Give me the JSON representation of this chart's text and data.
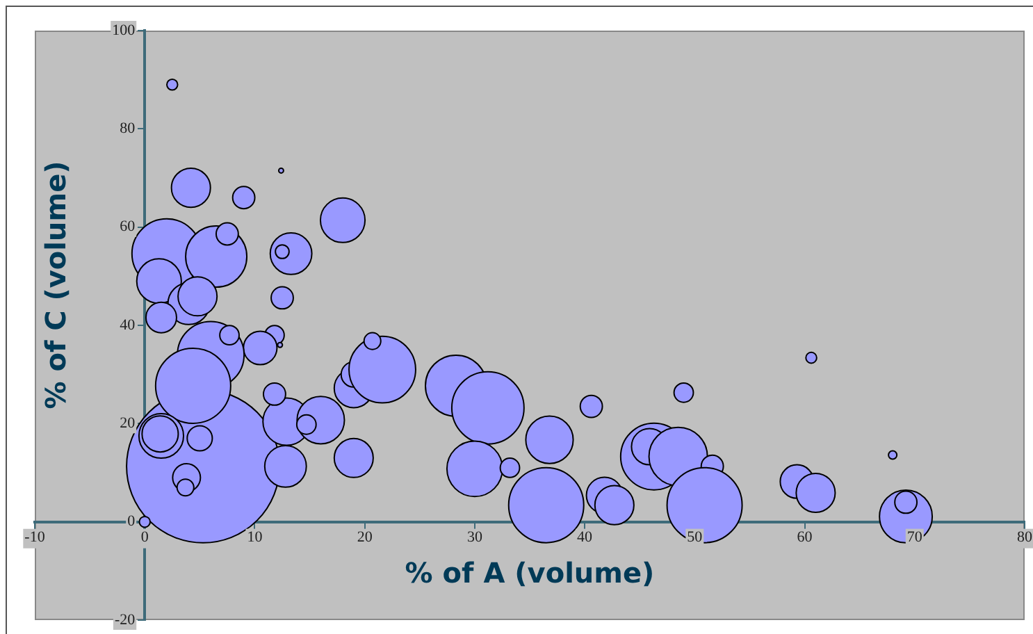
{
  "chart_data": {
    "type": "bubble",
    "xlabel": "% of A (volume)",
    "ylabel": "% of C (volume)",
    "xlim": [
      -10,
      80
    ],
    "ylim": [
      -20,
      100
    ],
    "xticks": [
      -10,
      0,
      10,
      20,
      30,
      40,
      50,
      60,
      70,
      80
    ],
    "yticks": [
      -20,
      0,
      20,
      40,
      60,
      80,
      100
    ],
    "color": "#9999ff",
    "x": [
      5.3,
      0,
      2.5,
      4.2,
      9,
      12.4,
      18,
      2,
      6.5,
      13.3,
      12.5,
      1.3,
      4,
      4.8,
      12.5,
      1.5,
      11.8,
      10.5,
      12.3,
      6,
      4.4,
      12.9,
      12.8,
      1.5,
      1.4,
      5,
      3.8,
      3.7,
      11.8,
      16,
      19,
      19,
      19,
      21.6,
      20.7,
      28.3,
      31.2,
      30,
      33.2,
      36.8,
      36.5,
      40.6,
      41.8,
      42.7,
      46.3,
      45.9,
      48.5,
      49,
      51.6,
      50.9,
      60.6,
      59.3,
      61,
      68,
      69.2,
      69.2,
      7.5,
      7.7,
      14.7
    ],
    "values": [
      11.3,
      0,
      89,
      68,
      66,
      71.5,
      61.4,
      54.6,
      54,
      54.6,
      55,
      49,
      44.4,
      45.9,
      45.6,
      41.6,
      38,
      35.4,
      36,
      34,
      27.7,
      20.4,
      11.3,
      17.5,
      17.9,
      17,
      9,
      7,
      26,
      20.7,
      13,
      27.2,
      30,
      31,
      36.8,
      27.7,
      23.2,
      10.8,
      11,
      16.7,
      3.4,
      23.5,
      5.4,
      3.4,
      13.3,
      15.3,
      13.3,
      26.3,
      11.3,
      3.4,
      33.4,
      8.2,
      5.9,
      13.6,
      1.1,
      4,
      58.6,
      38,
      19.8
    ],
    "sizes": [
      1,
      0.005,
      0.005,
      0.065,
      0.021,
      0.001,
      0.085,
      0.207,
      0.16,
      0.074,
      0.008,
      0.085,
      0.074,
      0.065,
      0.021,
      0.04,
      0.016,
      0.048,
      0.001,
      0.19,
      0.241,
      0.096,
      0.074,
      0.085,
      0.056,
      0.027,
      0.033,
      0.012,
      0.021,
      0.096,
      0.065,
      0.065,
      0.027,
      0.19,
      0.012,
      0.16,
      0.223,
      0.132,
      0.016,
      0.096,
      0.241,
      0.021,
      0.056,
      0.065,
      0.19,
      0.056,
      0.146,
      0.016,
      0.021,
      0.241,
      0.005,
      0.048,
      0.065,
      0.003,
      0.119,
      0.021,
      0.021,
      0.016,
      0.016
    ]
  }
}
